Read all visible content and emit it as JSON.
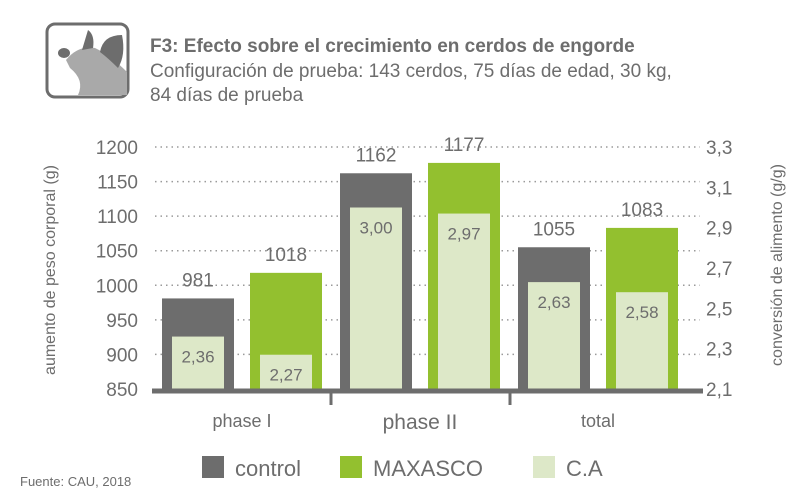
{
  "header": {
    "icon": "pig-icon",
    "title": "F3: Efecto sobre el crecimiento en cerdos de engorde",
    "subtitle_line1": "Configuración de prueba: 143 cerdos, 75 días de edad, 30 kg,",
    "subtitle_line2": "84 días de prueba"
  },
  "source": "Fuente: CAU, 2018",
  "chart_data": {
    "type": "bar",
    "categories": [
      "phase I",
      "phase II",
      "total"
    ],
    "series": [
      {
        "name": "control",
        "axis": "left",
        "values": [
          981,
          1162,
          1055
        ],
        "labels": [
          "981",
          "1162",
          "1055"
        ],
        "color": "#6d6d6d"
      },
      {
        "name": "MAXASCO",
        "axis": "left",
        "values": [
          1018,
          1177,
          1083
        ],
        "labels": [
          "1018",
          "1177",
          "1083"
        ],
        "color": "#93c02f"
      }
    ],
    "ca_series": {
      "name": "C.A",
      "axis": "right",
      "values": [
        [
          2.36,
          2.27
        ],
        [
          3.0,
          2.97
        ],
        [
          2.63,
          2.58
        ]
      ],
      "labels": [
        [
          "2,36",
          "2,27"
        ],
        [
          "3,00",
          "2,97"
        ],
        [
          "2,63",
          "2,58"
        ]
      ],
      "color": "#dde8c8"
    },
    "ylabel": "aumento de peso corporal (g)",
    "ylabel_right": "conversión de alimento (g/g)",
    "ylim": [
      850,
      1200
    ],
    "yticks": [
      "850",
      "900",
      "950",
      "1000",
      "1050",
      "1100",
      "1150",
      "1200"
    ],
    "ylim_right": [
      2.1,
      3.3
    ],
    "yticks_right": [
      "2,1",
      "2,3",
      "2,5",
      "2,7",
      "2,9",
      "3,1",
      "3,3"
    ],
    "grid": "horizontal dotted",
    "legend": [
      "control",
      "MAXASCO",
      "C.A"
    ],
    "legend_position": "bottom"
  }
}
